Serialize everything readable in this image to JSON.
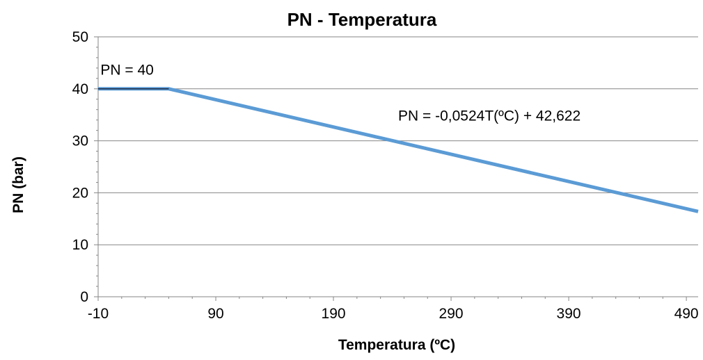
{
  "chart_data": {
    "type": "line",
    "title": "PN - Temperatura",
    "xlabel": "Temperatura (ºC)",
    "ylabel": "PN (bar)",
    "xlim": [
      -10,
      500
    ],
    "ylim": [
      0,
      50
    ],
    "x_ticks": [
      "-10",
      "90",
      "190",
      "290",
      "390",
      "490"
    ],
    "x_tick_values": [
      -10,
      90,
      190,
      290,
      390,
      490
    ],
    "y_ticks": [
      "0",
      "10",
      "20",
      "30",
      "40",
      "50"
    ],
    "y_tick_values": [
      0,
      10,
      20,
      30,
      40,
      50
    ],
    "grid": true,
    "series": [
      {
        "color": "#5b9bd5",
        "x": [
          -10,
          50,
          500
        ],
        "y": [
          40,
          40,
          16.4
        ]
      }
    ],
    "reference_line": {
      "color": "#1f2e4a",
      "x": [
        -10,
        50
      ],
      "y": [
        40,
        40
      ]
    },
    "annotations": [
      {
        "text": "PN = 40",
        "x": -8,
        "y": 42.7
      },
      {
        "text": "PN = -0,0524T(ºC) + 42,622",
        "x": 245,
        "y": 33.9
      }
    ],
    "colors": {
      "grid": "#868686",
      "axis": "#868686",
      "text": "#000000"
    }
  }
}
